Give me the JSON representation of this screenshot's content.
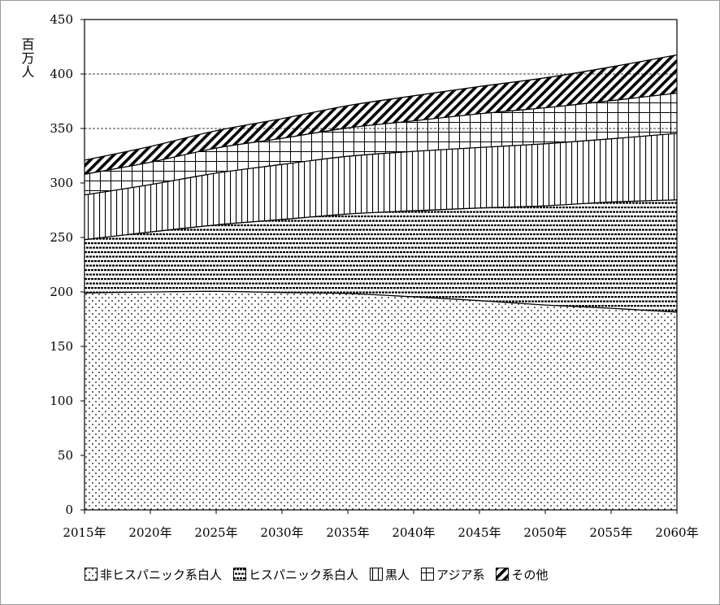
{
  "chart_data": {
    "type": "area",
    "stacked": true,
    "ylabel": "百万人",
    "ylim": [
      0,
      450
    ],
    "yticks": [
      "0",
      "50",
      "100",
      "150",
      "200",
      "250",
      "300",
      "350",
      "400",
      "450"
    ],
    "categories": [
      "2015年",
      "2020年",
      "2025年",
      "2030年",
      "2035年",
      "2040年",
      "2045年",
      "2050年",
      "2055年",
      "2060年"
    ],
    "x": [
      2015,
      2020,
      2025,
      2030,
      2035,
      2040,
      2045,
      2050,
      2055,
      2060
    ],
    "grid": "dashed horizontal at 350 and 400",
    "legend_position": "bottom",
    "series": [
      {
        "name": "非ヒスパニック系白人",
        "pattern": "dots",
        "values": [
          199,
          200,
          200.5,
          199.5,
          198.5,
          195.5,
          192,
          188,
          185,
          181.5
        ]
      },
      {
        "name": "ヒスパニック系白人",
        "pattern": "dashed-rows",
        "values": [
          49,
          55,
          61,
          67,
          73,
          79,
          85,
          91,
          97.5,
          103
        ]
      },
      {
        "name": "黒人",
        "pattern": "vertical-lines",
        "values": [
          41,
          43.5,
          47.5,
          50.5,
          53,
          54.5,
          55.5,
          57,
          58,
          61
        ]
      },
      {
        "name": "アジア系",
        "pattern": "grid",
        "values": [
          19,
          20.5,
          23,
          24,
          26,
          28,
          31,
          33,
          35,
          37
        ]
      },
      {
        "name": "その他",
        "pattern": "diagonal-hatch",
        "values": [
          13,
          14.5,
          16,
          18,
          20.5,
          23,
          25,
          27.5,
          31,
          35
        ]
      }
    ]
  }
}
